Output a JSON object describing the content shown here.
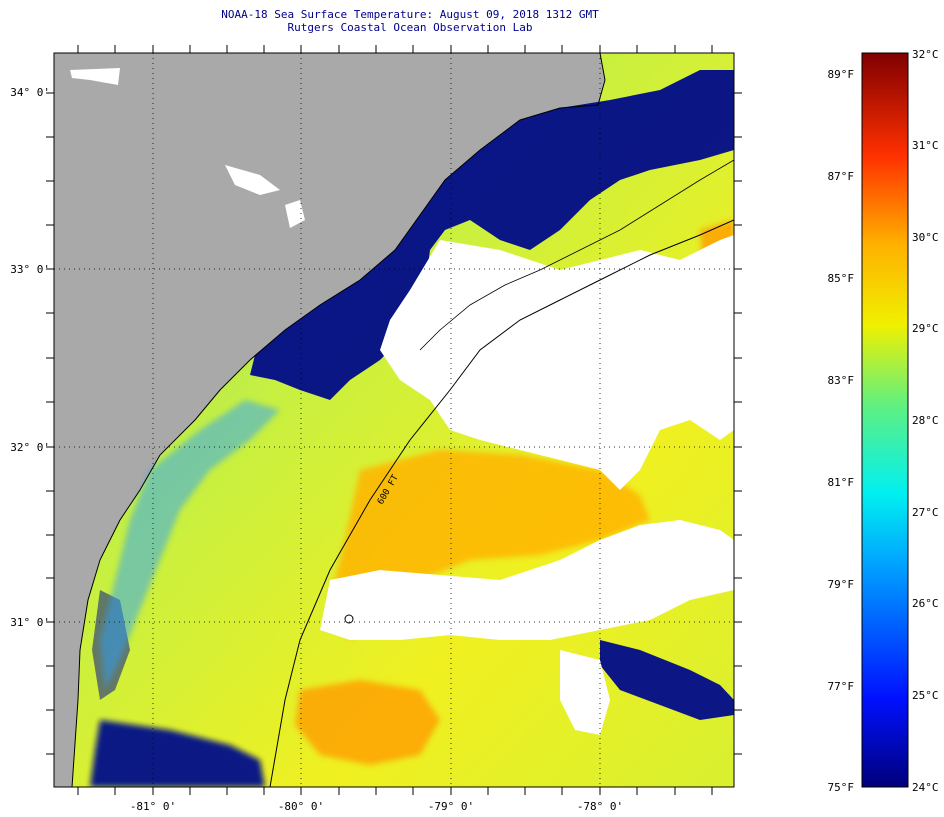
{
  "header": {
    "title": "NOAA-18 Sea Surface Temperature:  August 09, 2018 1312 GMT",
    "subtitle": "Rutgers Coastal Ocean Observation Lab"
  },
  "map": {
    "lat_labels": [
      "34° 0'",
      "33° 0'",
      "32° 0'",
      "31° 0'"
    ],
    "lon_labels": [
      "-81° 0'",
      "-80° 0'",
      "-79° 0'",
      "-78° 0'"
    ],
    "contour_label": "600 FT",
    "colors": {
      "land": "#a9a9a9",
      "cloud": "#ffffff",
      "cold": "#000a8a",
      "warm": "#ffb400"
    }
  },
  "colorbar": {
    "fahrenheit": [
      "89°F",
      "87°F",
      "85°F",
      "83°F",
      "81°F",
      "79°F",
      "77°F",
      "75°F"
    ],
    "celsius": [
      "32°C",
      "31°C",
      "30°C",
      "29°C",
      "28°C",
      "27°C",
      "26°C",
      "25°C",
      "24°C"
    ],
    "range_c": [
      24,
      32
    ]
  }
}
